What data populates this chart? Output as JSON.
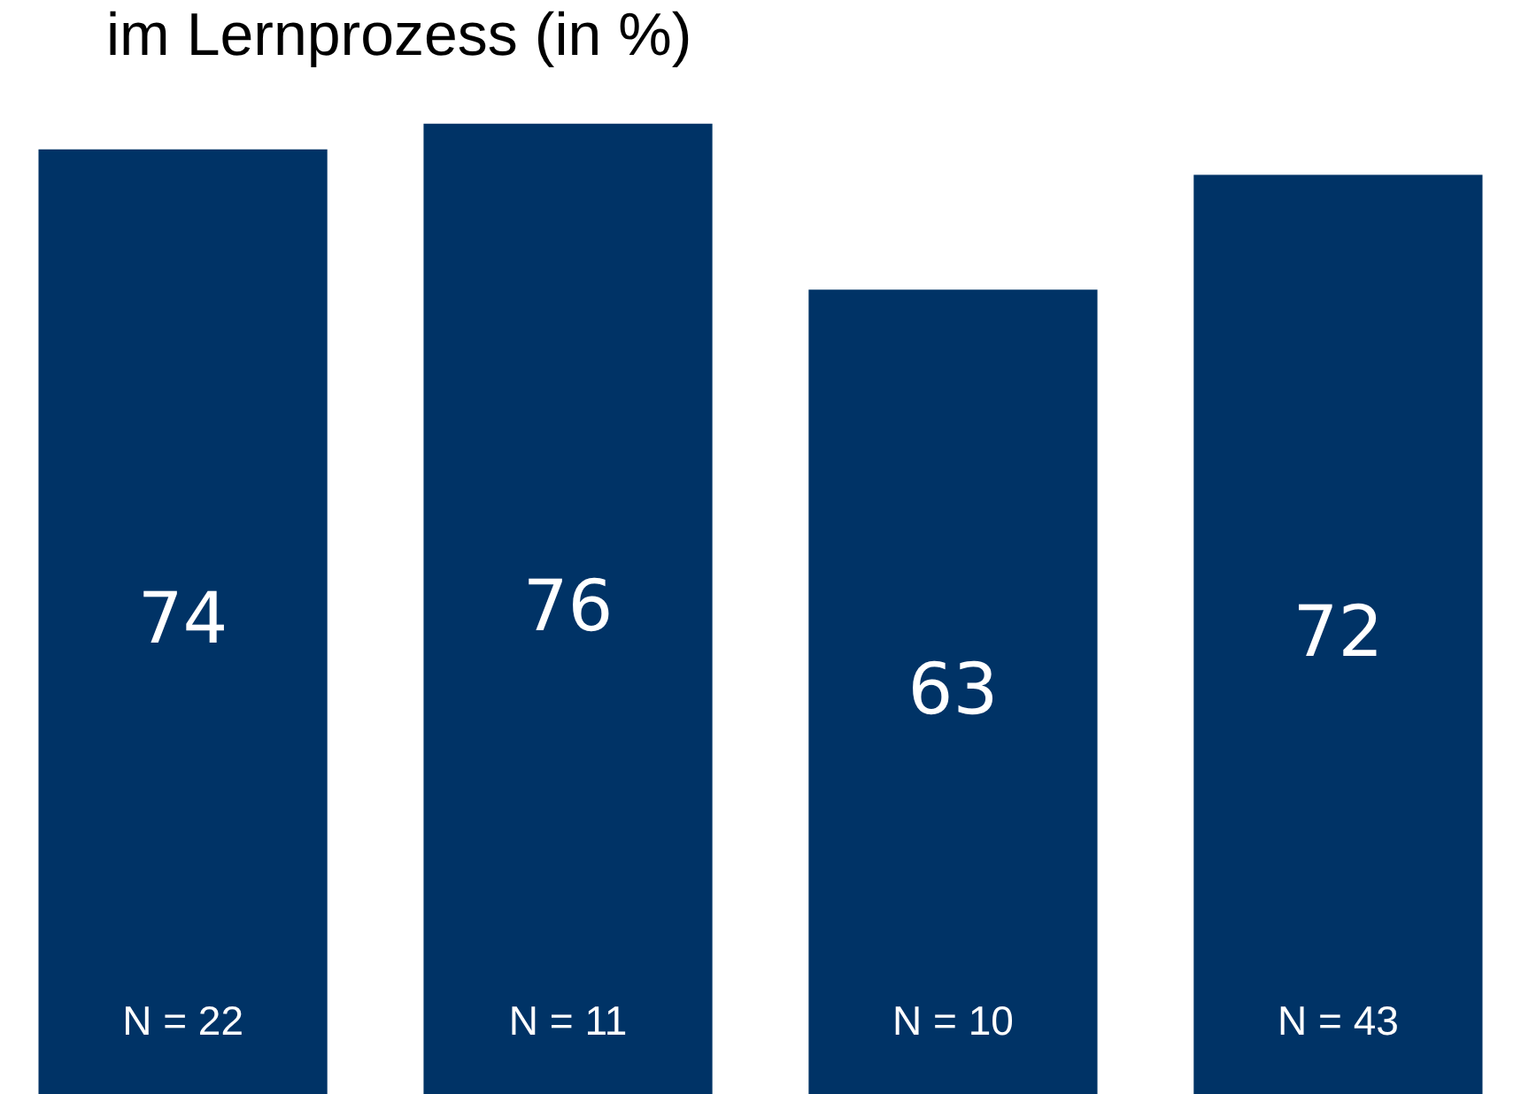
{
  "chart_data": {
    "type": "bar",
    "title": "im Lernprozess (in %)",
    "categories": [
      "N = 22",
      "N = 11",
      "N = 10",
      "N = 43"
    ],
    "values": [
      74,
      76,
      63,
      72
    ],
    "color": "#003366",
    "data_labels": true
  }
}
